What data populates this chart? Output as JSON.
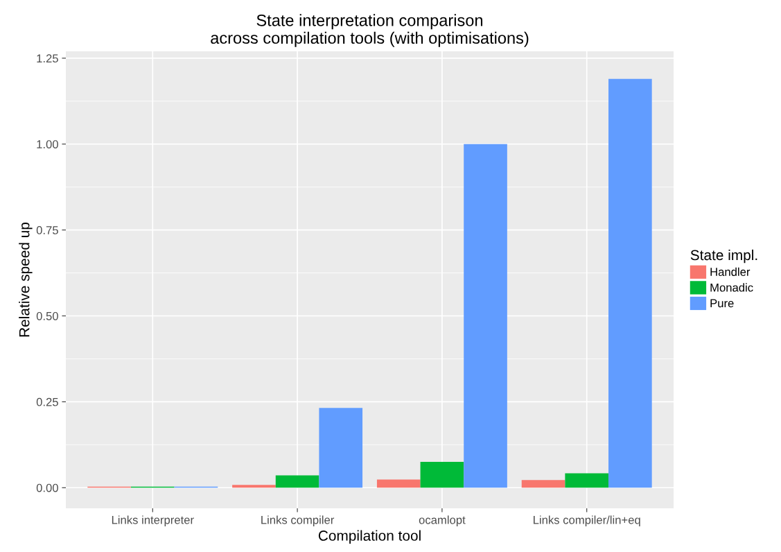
{
  "chart_data": {
    "type": "bar",
    "title": "State interpretation comparison\nacross compilation tools (with optimisations)",
    "xlabel": "Compilation tool",
    "ylabel": "Relative speed up",
    "legend_title": "State impl.",
    "categories": [
      "Links interpreter",
      "Links compiler",
      "ocamlopt",
      "Links compiler/lin+eq"
    ],
    "series": [
      {
        "name": "Handler",
        "color": "#f8766d",
        "values": [
          0.003,
          0.008,
          0.024,
          0.022
        ]
      },
      {
        "name": "Monadic",
        "color": "#00ba38",
        "values": [
          0.003,
          0.036,
          0.075,
          0.042
        ]
      },
      {
        "name": "Pure",
        "color": "#619cff",
        "values": [
          0.003,
          0.232,
          1.0,
          1.19
        ]
      }
    ],
    "ylim": [
      -0.06,
      1.27
    ],
    "yticks": [
      {
        "value": 0,
        "label": "0.00"
      },
      {
        "value": 0.25,
        "label": "0.25"
      },
      {
        "value": 0.5,
        "label": "0.50"
      },
      {
        "value": 0.75,
        "label": "0.75"
      },
      {
        "value": 1.0,
        "label": "1.00"
      },
      {
        "value": 1.25,
        "label": "1.25"
      }
    ],
    "grid": true,
    "legend": "right"
  }
}
